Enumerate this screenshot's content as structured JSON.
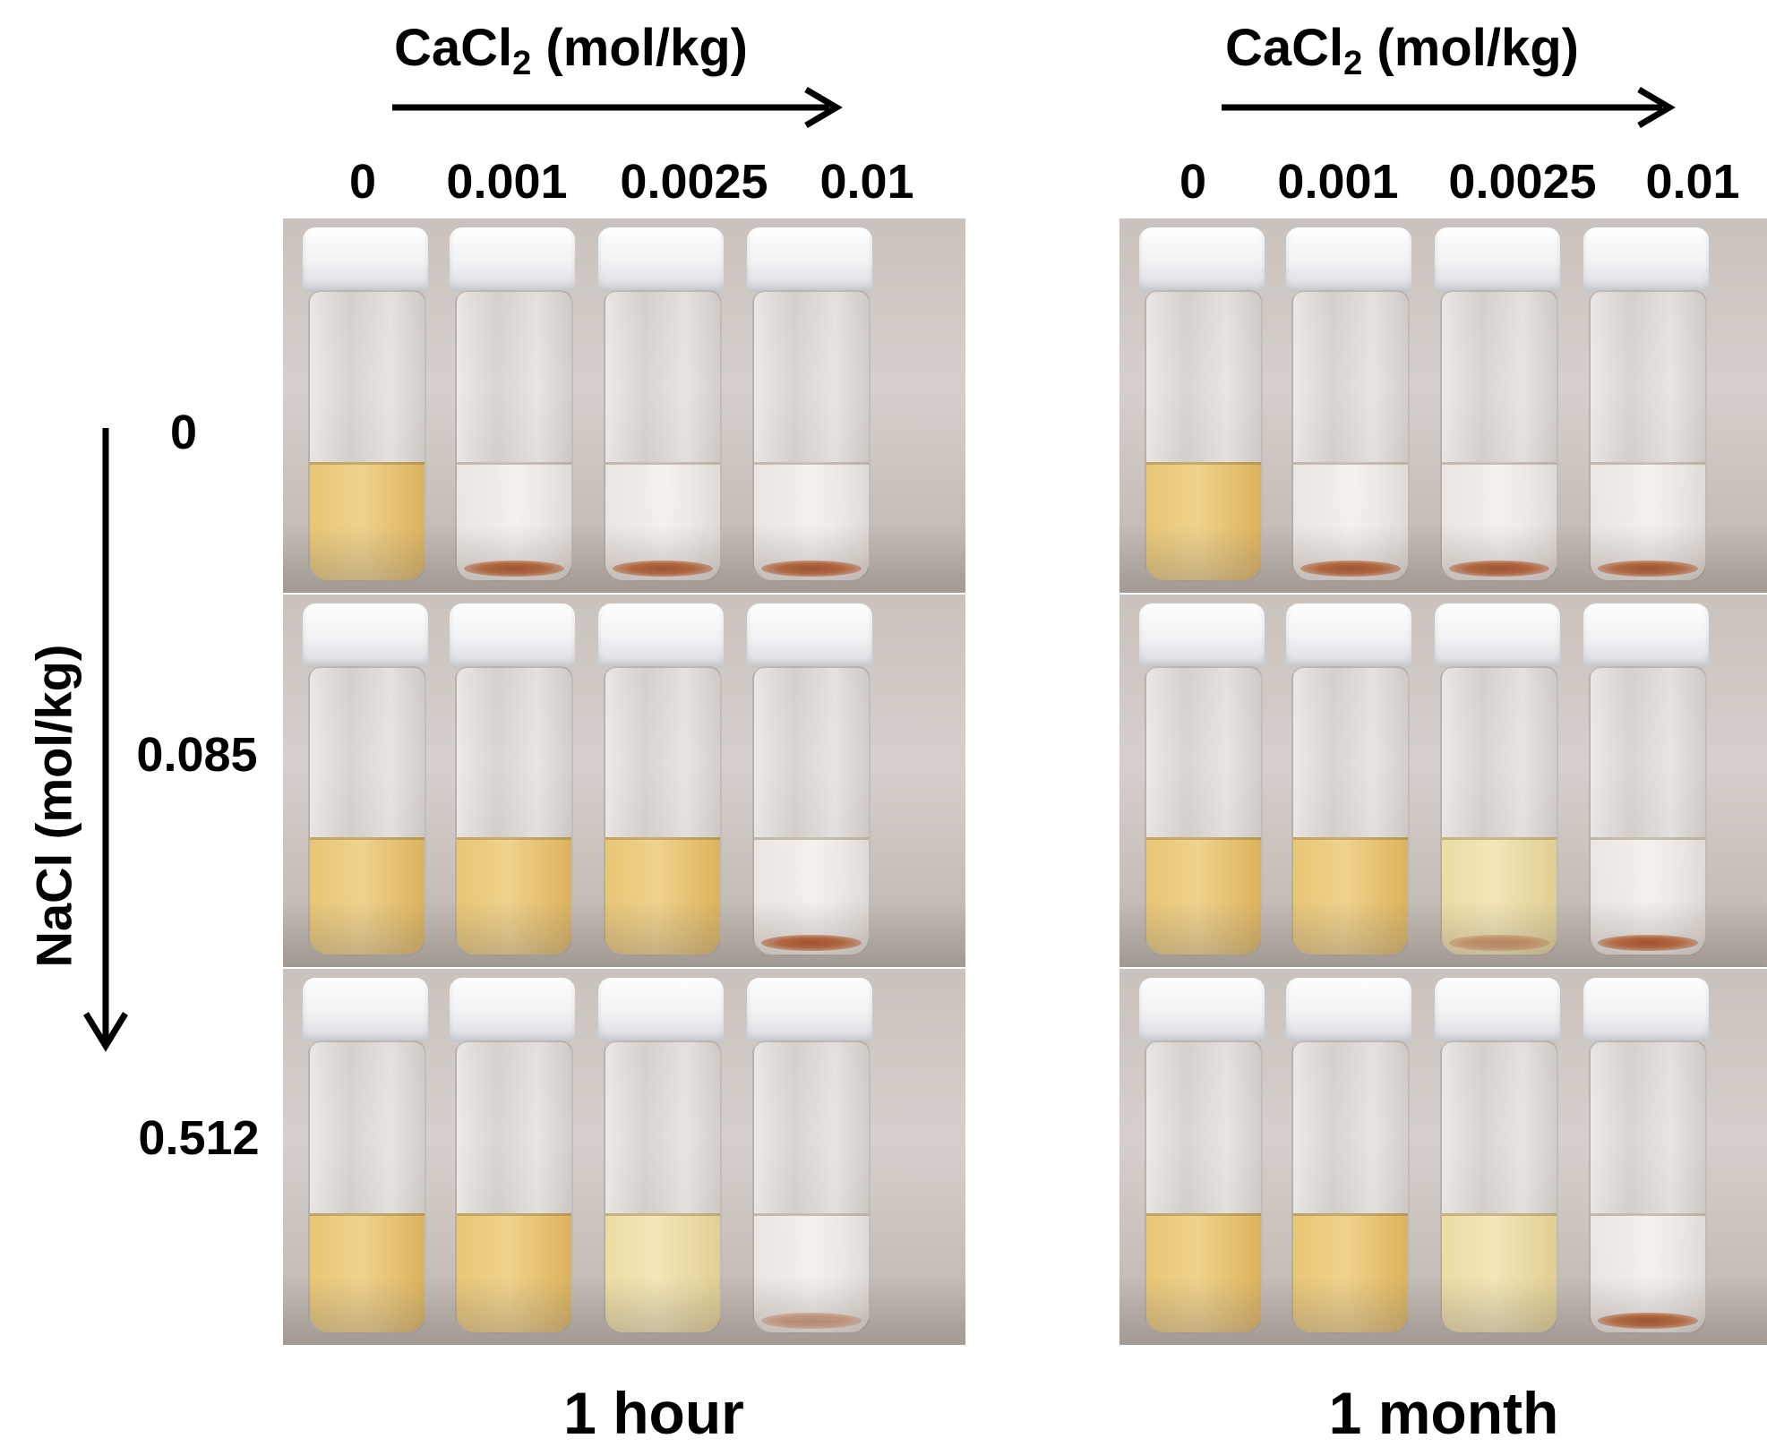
{
  "cacl2_axis_label": "CaCl",
  "cacl2_axis_subscript": "2",
  "cacl2_axis_unit": " (mol/kg)",
  "cacl2_ticks": [
    "0",
    "0.001",
    "0.0025",
    "0.01"
  ],
  "nacl_axis_label": "NaCl (mol/kg)",
  "nacl_ticks": [
    "0",
    "0.085",
    "0.512"
  ],
  "panels": [
    {
      "label": "1 hour",
      "rows": [
        [
          {
            "liquid": "amber",
            "sediment": "none"
          },
          {
            "liquid": "clear",
            "sediment": "heavy"
          },
          {
            "liquid": "clear",
            "sediment": "heavy"
          },
          {
            "liquid": "clear",
            "sediment": "heavy"
          }
        ],
        [
          {
            "liquid": "amber",
            "sediment": "none"
          },
          {
            "liquid": "amber",
            "sediment": "none"
          },
          {
            "liquid": "amber",
            "sediment": "none"
          },
          {
            "liquid": "clear",
            "sediment": "heavy"
          }
        ],
        [
          {
            "liquid": "amber",
            "sediment": "none"
          },
          {
            "liquid": "amber",
            "sediment": "none"
          },
          {
            "liquid": "pale",
            "sediment": "none"
          },
          {
            "liquid": "clear",
            "sediment": "light"
          }
        ]
      ]
    },
    {
      "label": "1 month",
      "rows": [
        [
          {
            "liquid": "amber",
            "sediment": "none"
          },
          {
            "liquid": "clear",
            "sediment": "heavy"
          },
          {
            "liquid": "clear",
            "sediment": "heavy"
          },
          {
            "liquid": "clear",
            "sediment": "heavy"
          }
        ],
        [
          {
            "liquid": "amber",
            "sediment": "none"
          },
          {
            "liquid": "amber",
            "sediment": "none"
          },
          {
            "liquid": "pale",
            "sediment": "light"
          },
          {
            "liquid": "clear",
            "sediment": "heavy"
          }
        ],
        [
          {
            "liquid": "amber",
            "sediment": "none"
          },
          {
            "liquid": "amber",
            "sediment": "none"
          },
          {
            "liquid": "pale",
            "sediment": "none"
          },
          {
            "liquid": "clear",
            "sediment": "heavy"
          }
        ]
      ]
    }
  ]
}
